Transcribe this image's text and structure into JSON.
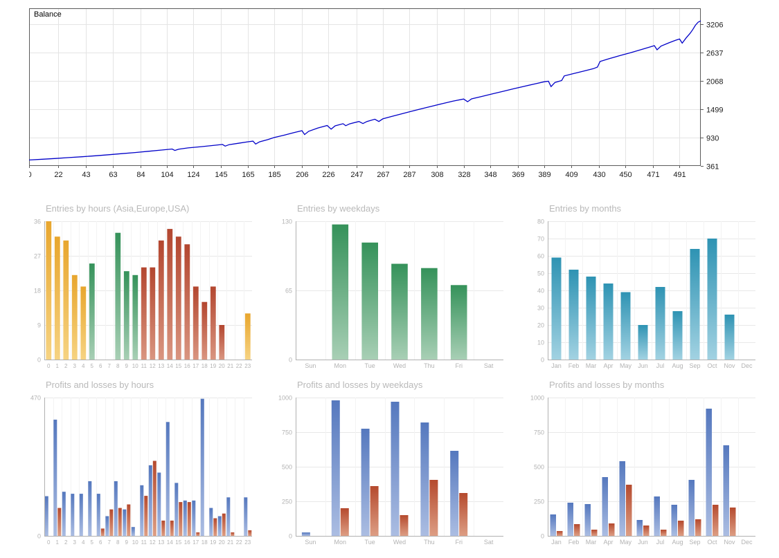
{
  "palette": {
    "asia": [
      "#E8A62E",
      "#F6D382"
    ],
    "europe": [
      "#35925A",
      "#A8CFB5"
    ],
    "usa": [
      "#B3462F",
      "#D99580"
    ],
    "months": [
      "#2E93B3",
      "#A2D2E2"
    ],
    "profit": [
      "#5578BE",
      "#ABBDE2"
    ],
    "loss": [
      "#B54A2E",
      "#DD9E84"
    ],
    "balance_line": "#0000C8",
    "grid": "#E4E4E4",
    "axis_text_dark": "#1A1A1A",
    "axis_text_gray": "#B3B3B3"
  },
  "chart_data": [
    {
      "type": "line",
      "title": "Balance",
      "line_color": "#0000C8",
      "xlim": [
        0,
        507
      ],
      "ylim": [
        361,
        3520
      ],
      "x_ticks": [
        0,
        22,
        43,
        63,
        84,
        104,
        124,
        145,
        165,
        185,
        206,
        226,
        247,
        267,
        287,
        308,
        328,
        348,
        369,
        389,
        409,
        430,
        450,
        471,
        491
      ],
      "y_ticks": [
        361,
        930,
        1499,
        2068,
        2637,
        3206
      ],
      "points": [
        [
          0,
          480
        ],
        [
          10,
          495
        ],
        [
          20,
          510
        ],
        [
          30,
          528
        ],
        [
          40,
          545
        ],
        [
          50,
          565
        ],
        [
          60,
          585
        ],
        [
          70,
          607
        ],
        [
          80,
          630
        ],
        [
          90,
          655
        ],
        [
          100,
          680
        ],
        [
          108,
          700
        ],
        [
          110,
          672
        ],
        [
          113,
          698
        ],
        [
          120,
          722
        ],
        [
          130,
          748
        ],
        [
          140,
          775
        ],
        [
          146,
          792
        ],
        [
          148,
          758
        ],
        [
          151,
          788
        ],
        [
          158,
          815
        ],
        [
          165,
          845
        ],
        [
          169,
          858
        ],
        [
          171,
          800
        ],
        [
          174,
          845
        ],
        [
          180,
          888
        ],
        [
          185,
          930
        ],
        [
          192,
          975
        ],
        [
          200,
          1030
        ],
        [
          206,
          1068
        ],
        [
          208,
          990
        ],
        [
          211,
          1055
        ],
        [
          218,
          1122
        ],
        [
          225,
          1172
        ],
        [
          228,
          1098
        ],
        [
          231,
          1165
        ],
        [
          237,
          1208
        ],
        [
          239,
          1168
        ],
        [
          242,
          1205
        ],
        [
          249,
          1252
        ],
        [
          252,
          1210
        ],
        [
          255,
          1252
        ],
        [
          261,
          1298
        ],
        [
          264,
          1252
        ],
        [
          267,
          1305
        ],
        [
          273,
          1348
        ],
        [
          280,
          1398
        ],
        [
          288,
          1452
        ],
        [
          296,
          1505
        ],
        [
          304,
          1558
        ],
        [
          312,
          1610
        ],
        [
          320,
          1660
        ],
        [
          328,
          1702
        ],
        [
          331,
          1648
        ],
        [
          334,
          1705
        ],
        [
          342,
          1755
        ],
        [
          350,
          1808
        ],
        [
          358,
          1858
        ],
        [
          366,
          1908
        ],
        [
          374,
          1958
        ],
        [
          382,
          2005
        ],
        [
          389,
          2048
        ],
        [
          392,
          2058
        ],
        [
          394,
          1952
        ],
        [
          397,
          2035
        ],
        [
          402,
          2072
        ],
        [
          404,
          2165
        ],
        [
          410,
          2205
        ],
        [
          418,
          2258
        ],
        [
          426,
          2310
        ],
        [
          429,
          2342
        ],
        [
          431,
          2455
        ],
        [
          438,
          2512
        ],
        [
          446,
          2572
        ],
        [
          454,
          2630
        ],
        [
          462,
          2692
        ],
        [
          469,
          2748
        ],
        [
          472,
          2772
        ],
        [
          474,
          2688
        ],
        [
          477,
          2762
        ],
        [
          483,
          2828
        ],
        [
          488,
          2878
        ],
        [
          491,
          2905
        ],
        [
          493,
          2822
        ],
        [
          496,
          2928
        ],
        [
          499,
          3020
        ],
        [
          501,
          3095
        ],
        [
          503,
          3180
        ],
        [
          505,
          3242
        ],
        [
          507,
          3268
        ]
      ]
    },
    {
      "type": "bar",
      "title": "Entries by hours (Asia,Europe,USA)",
      "categories": [
        "0",
        "1",
        "2",
        "3",
        "4",
        "5",
        "6",
        "7",
        "8",
        "9",
        "10",
        "11",
        "12",
        "13",
        "14",
        "15",
        "16",
        "17",
        "18",
        "19",
        "20",
        "21",
        "22",
        "23"
      ],
      "values": [
        36,
        32,
        31,
        22,
        19,
        25,
        0,
        0,
        33,
        23,
        22,
        24,
        24,
        31,
        34,
        32,
        30,
        19,
        15,
        19,
        9,
        0,
        0,
        12
      ],
      "colors": [
        "asia",
        "asia",
        "asia",
        "asia",
        "asia",
        "europe",
        "asia",
        "asia",
        "europe",
        "europe",
        "europe",
        "usa",
        "usa",
        "usa",
        "usa",
        "usa",
        "usa",
        "usa",
        "usa",
        "usa",
        "usa",
        "usa",
        "usa",
        "asia"
      ],
      "y_ticks": [
        0,
        9,
        18,
        27,
        36
      ],
      "ylim": [
        0,
        36
      ]
    },
    {
      "type": "bar",
      "title": "Entries by weekdays",
      "categories": [
        "Sun",
        "Mon",
        "Tue",
        "Wed",
        "Thu",
        "Fri",
        "Sat"
      ],
      "values": [
        0,
        127,
        110,
        90,
        86,
        70,
        0
      ],
      "color": "europe",
      "y_ticks": [
        0,
        65,
        130
      ],
      "ylim": [
        0,
        130
      ]
    },
    {
      "type": "bar",
      "title": "Entries by months",
      "categories": [
        "Jan",
        "Feb",
        "Mar",
        "Apr",
        "May",
        "Jun",
        "Jul",
        "Aug",
        "Sep",
        "Oct",
        "Nov",
        "Dec"
      ],
      "values": [
        59,
        52,
        48,
        44,
        39,
        20,
        42,
        28,
        64,
        70,
        26,
        0
      ],
      "color": "months",
      "y_ticks": [
        0,
        10,
        20,
        30,
        40,
        50,
        60,
        70,
        80
      ],
      "ylim": [
        0,
        80
      ]
    },
    {
      "type": "grouped_bar",
      "title": "Profits and losses by hours",
      "categories": [
        "0",
        "1",
        "2",
        "3",
        "4",
        "5",
        "6",
        "7",
        "8",
        "9",
        "10",
        "11",
        "12",
        "13",
        "14",
        "15",
        "16",
        "17",
        "18",
        "19",
        "20",
        "21",
        "22",
        "23"
      ],
      "series": [
        {
          "name": "profit",
          "color": "profit",
          "values": [
            135,
            395,
            150,
            143,
            143,
            186,
            143,
            67,
            186,
            90,
            30,
            172,
            240,
            215,
            387,
            180,
            120,
            120,
            466,
            95,
            67,
            131,
            0,
            131
          ]
        },
        {
          "name": "loss",
          "color": "loss",
          "values": [
            0,
            95,
            0,
            0,
            0,
            0,
            25,
            90,
            95,
            107,
            0,
            136,
            255,
            52,
            52,
            115,
            115,
            12,
            0,
            60,
            76,
            12,
            0,
            19
          ]
        }
      ],
      "y_ticks": [
        0,
        470
      ],
      "ylim": [
        0,
        470
      ]
    },
    {
      "type": "grouped_bar",
      "title": "Profits and losses by weekdays",
      "categories": [
        "Sun",
        "Mon",
        "Tue",
        "Wed",
        "Thu",
        "Fri",
        "Sat"
      ],
      "series": [
        {
          "name": "profit",
          "color": "profit",
          "values": [
            25,
            980,
            775,
            970,
            820,
            615,
            0
          ]
        },
        {
          "name": "loss",
          "color": "loss",
          "values": [
            0,
            200,
            360,
            150,
            405,
            310,
            0
          ]
        }
      ],
      "y_ticks": [
        0,
        250,
        500,
        750,
        1000
      ],
      "ylim": [
        0,
        1000
      ]
    },
    {
      "type": "grouped_bar",
      "title": "Profits and losses by months",
      "categories": [
        "Jan",
        "Feb",
        "Mar",
        "Apr",
        "May",
        "Jun",
        "Jul",
        "Aug",
        "Sep",
        "Oct",
        "Nov",
        "Dec"
      ],
      "series": [
        {
          "name": "profit",
          "color": "profit",
          "values": [
            155,
            240,
            230,
            425,
            540,
            115,
            285,
            225,
            405,
            920,
            655,
            0
          ]
        },
        {
          "name": "loss",
          "color": "loss",
          "values": [
            35,
            85,
            45,
            90,
            370,
            75,
            45,
            110,
            120,
            225,
            205,
            0
          ]
        }
      ],
      "y_ticks": [
        0,
        250,
        500,
        750,
        1000
      ],
      "ylim": [
        0,
        1000
      ]
    }
  ]
}
